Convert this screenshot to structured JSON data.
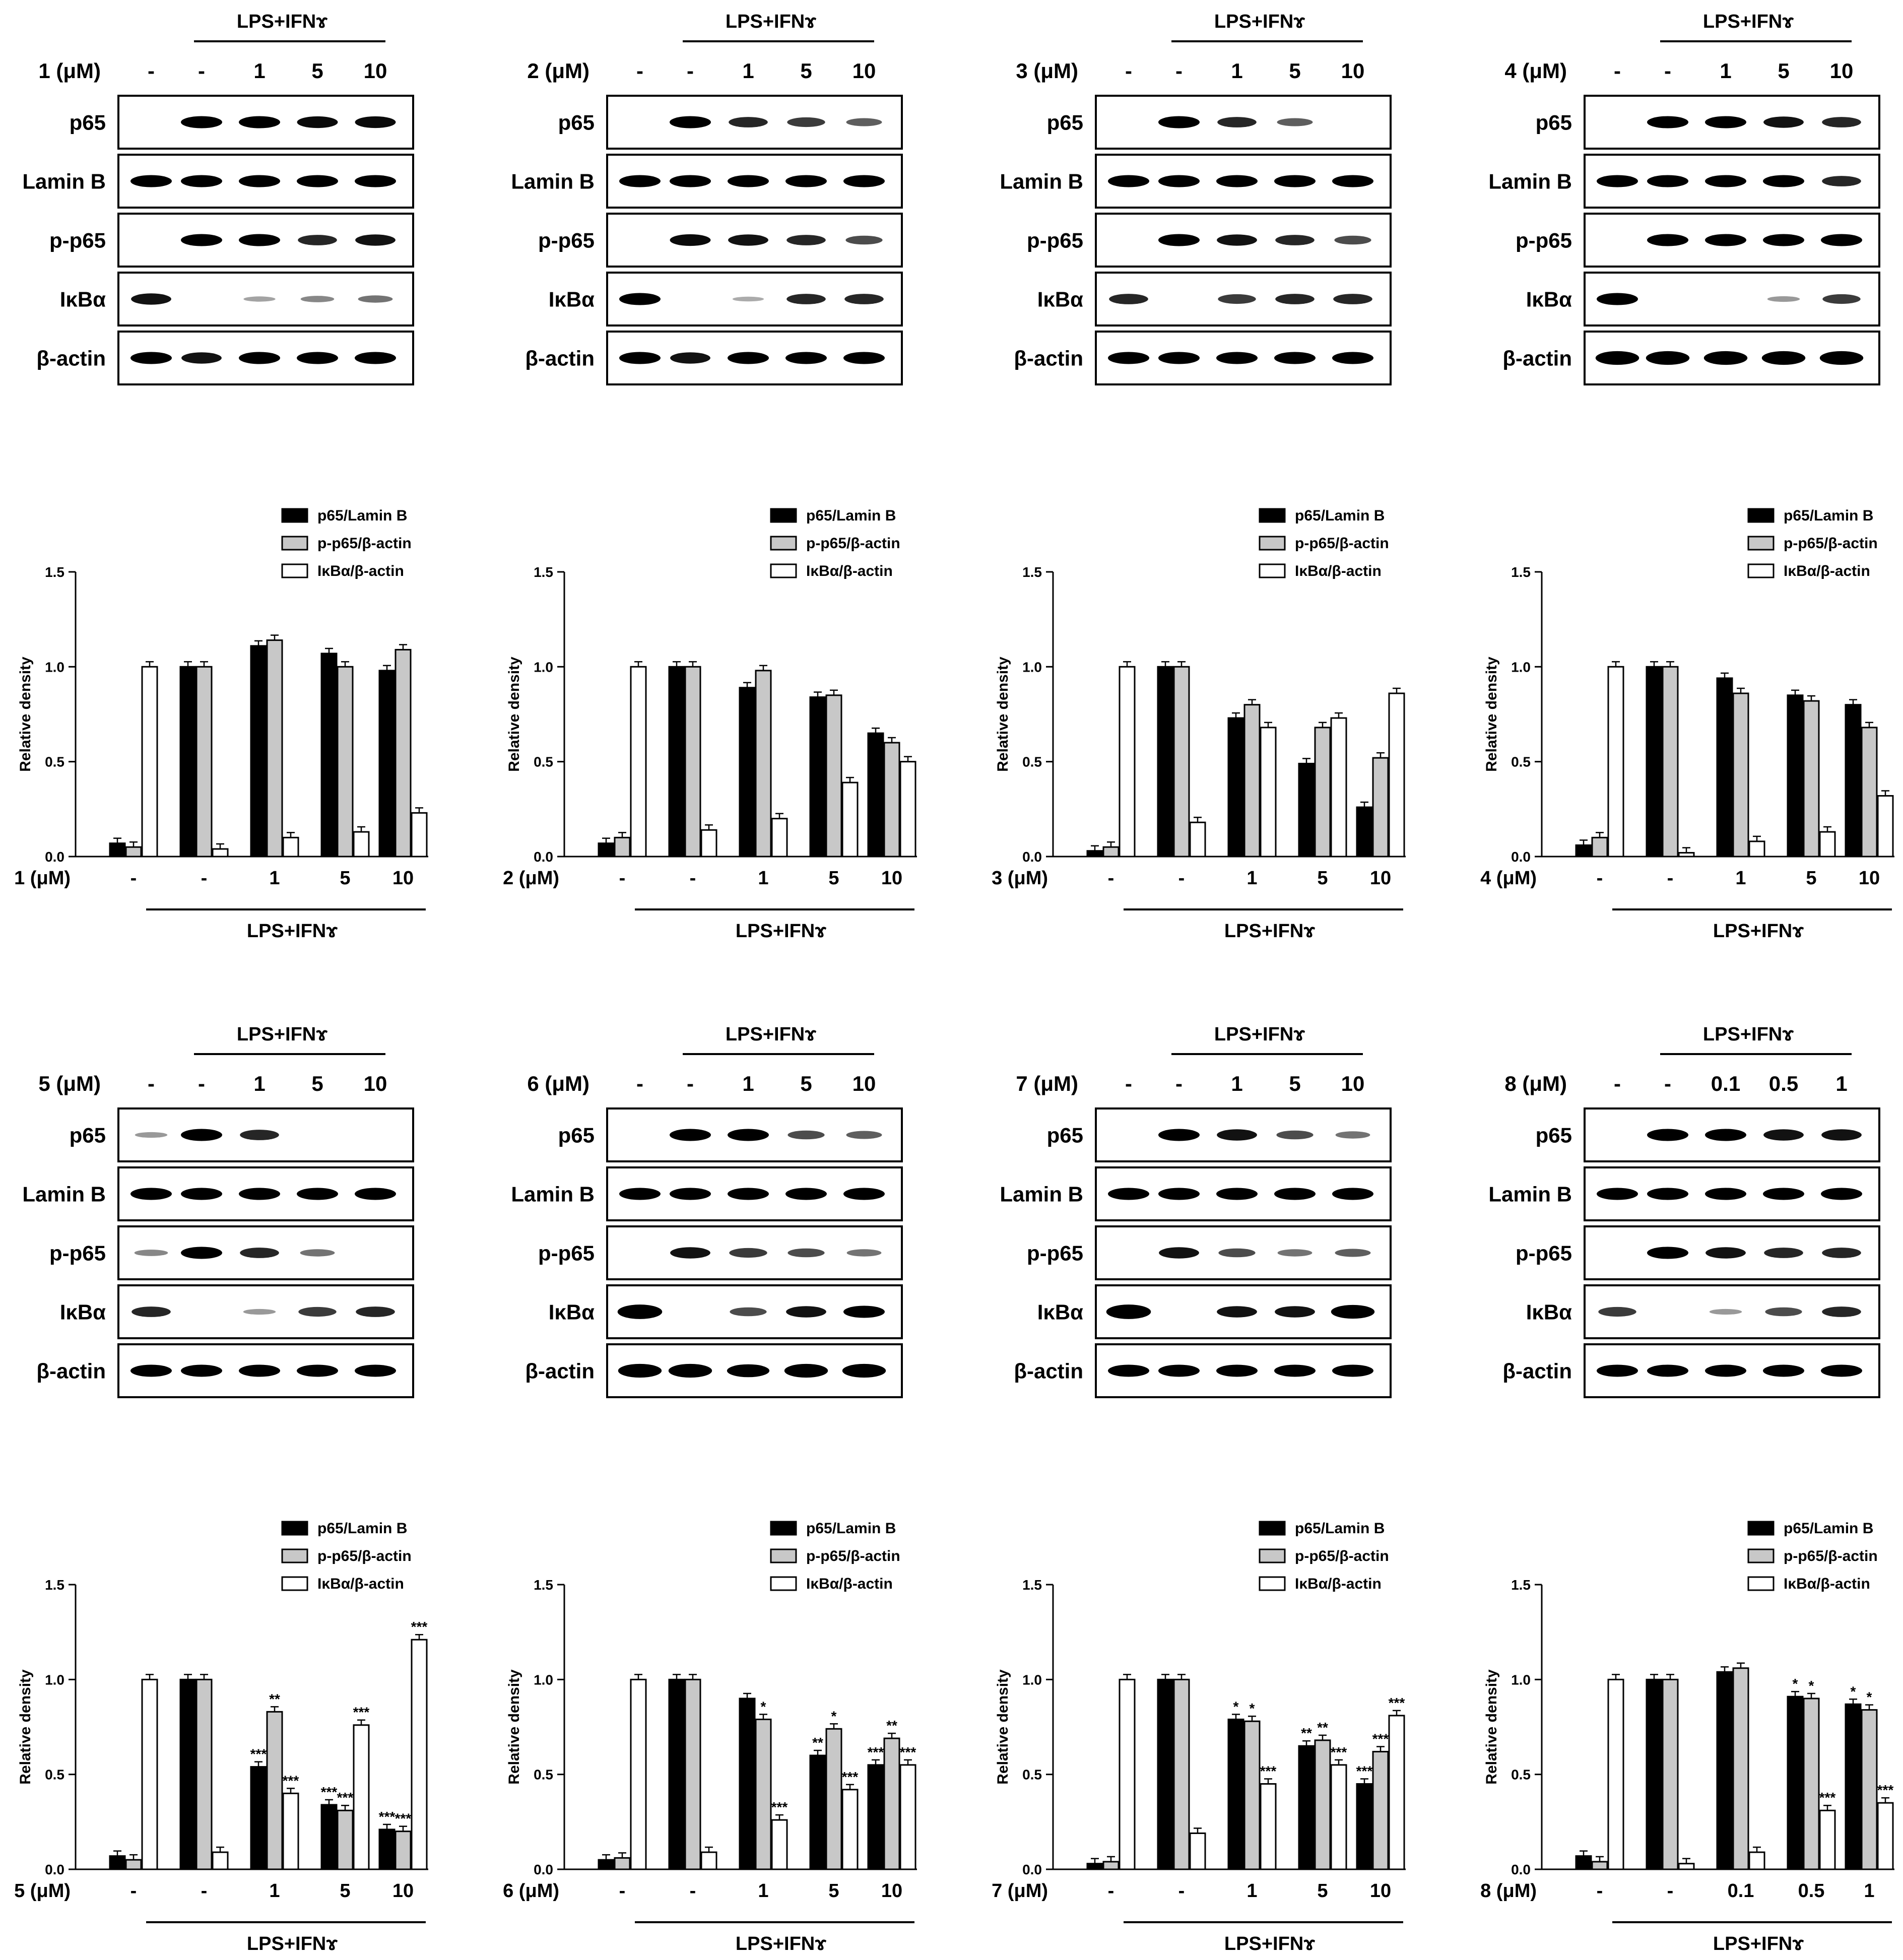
{
  "treatment_label": "LPS+IFNɤ",
  "blot_labels": [
    "p65",
    "Lamin B",
    "p-p65",
    "IκBα",
    "β-actin"
  ],
  "chart_common": {
    "ylabel": "Relative density",
    "yticks": [
      "0.0",
      "0.5",
      "1.0",
      "1.5"
    ],
    "ylim": [
      0,
      1.5
    ],
    "legend": [
      "p65/Lamin B",
      "p-p65/β-actin",
      "IκBα/β-actin"
    ],
    "colors": {
      "p65": "#000000",
      "pp65": "#c8c8c8",
      "ikba": "#ffffff"
    }
  },
  "blots": [
    {
      "compound": "1 (μM)",
      "doses": [
        "-",
        "-",
        "1",
        "5",
        "10"
      ],
      "bands": [
        [
          0,
          1,
          1,
          0.95,
          0.95
        ],
        [
          1,
          1,
          1,
          1,
          1
        ],
        [
          0,
          1,
          1,
          0.8,
          0.9
        ],
        [
          0.9,
          0,
          0.15,
          0.3,
          0.4
        ],
        [
          1,
          0.9,
          1,
          1,
          1
        ]
      ]
    },
    {
      "compound": "2 (μM)",
      "doses": [
        "-",
        "-",
        "1",
        "5",
        "10"
      ],
      "bands": [
        [
          0,
          1,
          0.8,
          0.7,
          0.5
        ],
        [
          1,
          1,
          1,
          1,
          1
        ],
        [
          0,
          0.95,
          0.9,
          0.8,
          0.6
        ],
        [
          1,
          0,
          0.1,
          0.8,
          0.8
        ],
        [
          1,
          0.9,
          1,
          1,
          1
        ]
      ]
    },
    {
      "compound": "3 (μM)",
      "doses": [
        "-",
        "-",
        "1",
        "5",
        "10"
      ],
      "bands": [
        [
          0,
          1,
          0.8,
          0.5,
          0
        ],
        [
          1,
          1,
          1,
          1,
          1
        ],
        [
          0,
          1,
          0.9,
          0.8,
          0.6
        ],
        [
          0.8,
          0,
          0.7,
          0.8,
          0.8
        ],
        [
          1,
          1,
          1,
          1,
          1
        ]
      ]
    },
    {
      "compound": "4 (μM)",
      "doses": [
        "-",
        "-",
        "1",
        "5",
        "10"
      ],
      "bands": [
        [
          0,
          1,
          1,
          0.9,
          0.8
        ],
        [
          1,
          1,
          1,
          1,
          0.8
        ],
        [
          0,
          1,
          1,
          1,
          1
        ],
        [
          1,
          0,
          0,
          0.2,
          0.7
        ],
        [
          1.2,
          1.2,
          1.2,
          1.2,
          1.2
        ]
      ]
    },
    {
      "compound": "5 (μM)",
      "doses": [
        "-",
        "-",
        "1",
        "5",
        "10"
      ],
      "bands": [
        [
          0.2,
          1,
          0.8,
          0,
          0
        ],
        [
          1,
          1,
          1,
          1,
          1
        ],
        [
          0.3,
          1,
          0.8,
          0.4,
          0
        ],
        [
          0.8,
          0,
          0.2,
          0.7,
          0.8
        ],
        [
          1,
          1,
          1,
          1,
          1
        ]
      ]
    },
    {
      "compound": "6 (μM)",
      "doses": [
        "-",
        "-",
        "1",
        "5",
        "10"
      ],
      "bands": [
        [
          0,
          1,
          1,
          0.6,
          0.5
        ],
        [
          1,
          1,
          1,
          1,
          1
        ],
        [
          0,
          0.9,
          0.7,
          0.6,
          0.4
        ],
        [
          1.3,
          0,
          0.6,
          0.9,
          1
        ],
        [
          1.2,
          1.2,
          1.1,
          1.2,
          1.2
        ]
      ]
    },
    {
      "compound": "7 (μM)",
      "doses": [
        "-",
        "-",
        "1",
        "5",
        "10"
      ],
      "bands": [
        [
          0,
          1,
          0.9,
          0.6,
          0.4
        ],
        [
          1,
          1,
          1,
          1,
          1
        ],
        [
          0,
          0.9,
          0.6,
          0.4,
          0.5
        ],
        [
          1.3,
          0,
          0.9,
          0.9,
          1.2
        ],
        [
          1,
          1,
          1,
          1,
          1
        ]
      ]
    },
    {
      "compound": "8 (μM)",
      "doses": [
        "-",
        "-",
        "0.1",
        "0.5",
        "1"
      ],
      "bands": [
        [
          0,
          1,
          1,
          0.9,
          0.9
        ],
        [
          1,
          1,
          1,
          1,
          1
        ],
        [
          0,
          1,
          0.9,
          0.8,
          0.8
        ],
        [
          0.7,
          0,
          0.2,
          0.6,
          0.8
        ],
        [
          1,
          1,
          1,
          1,
          1
        ]
      ]
    }
  ],
  "chart_data": [
    {
      "type": "bar",
      "compound": "1 (μM)",
      "categories": [
        "-",
        "-",
        "1",
        "5",
        "10"
      ],
      "ylim": [
        0,
        1.5
      ],
      "ylabel": "Relative density",
      "series": [
        {
          "name": "p65/Lamin B",
          "values": [
            0.07,
            1.0,
            1.11,
            1.07,
            0.98
          ]
        },
        {
          "name": "p-p65/β-actin",
          "values": [
            0.05,
            1.0,
            1.14,
            1.0,
            1.09
          ]
        },
        {
          "name": "IκBα/β-actin",
          "values": [
            1.0,
            0.04,
            0.1,
            0.13,
            0.23
          ]
        }
      ],
      "significance": [
        [
          "",
          "",
          "",
          "",
          ""
        ],
        [
          "",
          "",
          "",
          "",
          ""
        ],
        [
          "",
          "",
          "",
          "",
          ""
        ]
      ]
    },
    {
      "type": "bar",
      "compound": "2 (μM)",
      "categories": [
        "-",
        "-",
        "1",
        "5",
        "10"
      ],
      "ylim": [
        0,
        1.5
      ],
      "ylabel": "Relative density",
      "series": [
        {
          "name": "p65/Lamin B",
          "values": [
            0.07,
            1.0,
            0.89,
            0.84,
            0.65
          ]
        },
        {
          "name": "p-p65/β-actin",
          "values": [
            0.1,
            1.0,
            0.98,
            0.85,
            0.6
          ]
        },
        {
          "name": "IκBα/β-actin",
          "values": [
            1.0,
            0.14,
            0.2,
            0.39,
            0.5
          ]
        }
      ],
      "significance": [
        [
          "",
          "",
          "",
          "",
          ""
        ],
        [
          "",
          "",
          "",
          "",
          ""
        ],
        [
          "",
          "",
          "",
          "",
          ""
        ]
      ]
    },
    {
      "type": "bar",
      "compound": "3 (μM)",
      "categories": [
        "-",
        "-",
        "1",
        "5",
        "10"
      ],
      "ylim": [
        0,
        1.5
      ],
      "ylabel": "Relative density",
      "series": [
        {
          "name": "p65/Lamin B",
          "values": [
            0.03,
            1.0,
            0.73,
            0.49,
            0.26
          ]
        },
        {
          "name": "p-p65/β-actin",
          "values": [
            0.05,
            1.0,
            0.8,
            0.68,
            0.52
          ]
        },
        {
          "name": "IκBα/β-actin",
          "values": [
            1.0,
            0.18,
            0.68,
            0.73,
            0.86
          ]
        }
      ],
      "significance": [
        [
          "",
          "",
          "",
          "",
          ""
        ],
        [
          "",
          "",
          "",
          "",
          ""
        ],
        [
          "",
          "",
          "",
          "",
          ""
        ]
      ]
    },
    {
      "type": "bar",
      "compound": "4 (μM)",
      "categories": [
        "-",
        "-",
        "1",
        "5",
        "10"
      ],
      "ylim": [
        0,
        1.5
      ],
      "ylabel": "Relative density",
      "series": [
        {
          "name": "p65/Lamin B",
          "values": [
            0.06,
            1.0,
            0.94,
            0.85,
            0.8
          ]
        },
        {
          "name": "p-p65/β-actin",
          "values": [
            0.1,
            1.0,
            0.86,
            0.82,
            0.68
          ]
        },
        {
          "name": "IκBα/β-actin",
          "values": [
            1.0,
            0.02,
            0.08,
            0.13,
            0.32
          ]
        }
      ],
      "significance": [
        [
          "",
          "",
          "",
          "",
          ""
        ],
        [
          "",
          "",
          "",
          "",
          ""
        ],
        [
          "",
          "",
          "",
          "",
          ""
        ]
      ]
    },
    {
      "type": "bar",
      "compound": "5 (μM)",
      "categories": [
        "-",
        "-",
        "1",
        "5",
        "10"
      ],
      "ylim": [
        0,
        1.5
      ],
      "ylabel": "Relative density",
      "series": [
        {
          "name": "p65/Lamin B",
          "values": [
            0.07,
            1.0,
            0.54,
            0.34,
            0.21
          ]
        },
        {
          "name": "p-p65/β-actin",
          "values": [
            0.05,
            1.0,
            0.83,
            0.31,
            0.2
          ]
        },
        {
          "name": "IκBα/β-actin",
          "values": [
            1.0,
            0.09,
            0.4,
            0.76,
            1.21
          ]
        }
      ],
      "significance": [
        [
          "",
          "",
          "***",
          "***",
          "***"
        ],
        [
          "",
          "",
          "**",
          "***",
          "***"
        ],
        [
          "",
          "",
          "***",
          "***",
          "***"
        ]
      ]
    },
    {
      "type": "bar",
      "compound": "6 (μM)",
      "categories": [
        "-",
        "-",
        "1",
        "5",
        "10"
      ],
      "ylim": [
        0,
        1.5
      ],
      "ylabel": "Relative density",
      "series": [
        {
          "name": "p65/Lamin B",
          "values": [
            0.05,
            1.0,
            0.9,
            0.6,
            0.55
          ]
        },
        {
          "name": "p-p65/β-actin",
          "values": [
            0.06,
            1.0,
            0.79,
            0.74,
            0.69
          ]
        },
        {
          "name": "IκBα/β-actin",
          "values": [
            1.0,
            0.09,
            0.26,
            0.42,
            0.55
          ]
        }
      ],
      "significance": [
        [
          "",
          "",
          "",
          "**",
          "***"
        ],
        [
          "",
          "",
          "*",
          "*",
          "**"
        ],
        [
          "",
          "",
          "***",
          "***",
          "***"
        ]
      ]
    },
    {
      "type": "bar",
      "compound": "7 (μM)",
      "categories": [
        "-",
        "-",
        "1",
        "5",
        "10"
      ],
      "ylim": [
        0,
        1.5
      ],
      "ylabel": "Relative density",
      "series": [
        {
          "name": "p65/Lamin B",
          "values": [
            0.03,
            1.0,
            0.79,
            0.65,
            0.45
          ]
        },
        {
          "name": "p-p65/β-actin",
          "values": [
            0.04,
            1.0,
            0.78,
            0.68,
            0.62
          ]
        },
        {
          "name": "IκBα/β-actin",
          "values": [
            1.0,
            0.19,
            0.45,
            0.55,
            0.81
          ]
        }
      ],
      "significance": [
        [
          "",
          "",
          "*",
          "**",
          "***"
        ],
        [
          "",
          "",
          "*",
          "**",
          "***"
        ],
        [
          "",
          "",
          "***",
          "***",
          "***"
        ]
      ]
    },
    {
      "type": "bar",
      "compound": "8 (μM)",
      "categories": [
        "-",
        "-",
        "0.1",
        "0.5",
        "1"
      ],
      "ylim": [
        0,
        1.5
      ],
      "ylabel": "Relative density",
      "series": [
        {
          "name": "p65/Lamin B",
          "values": [
            0.07,
            1.0,
            1.04,
            0.91,
            0.87
          ]
        },
        {
          "name": "p-p65/β-actin",
          "values": [
            0.04,
            1.0,
            1.06,
            0.9,
            0.84
          ]
        },
        {
          "name": "IκBα/β-actin",
          "values": [
            1.0,
            0.03,
            0.09,
            0.31,
            0.35
          ]
        }
      ],
      "significance": [
        [
          "",
          "",
          "",
          "*",
          "*"
        ],
        [
          "",
          "",
          "",
          "*",
          "*"
        ],
        [
          "",
          "",
          "",
          "***",
          "***"
        ]
      ]
    }
  ]
}
